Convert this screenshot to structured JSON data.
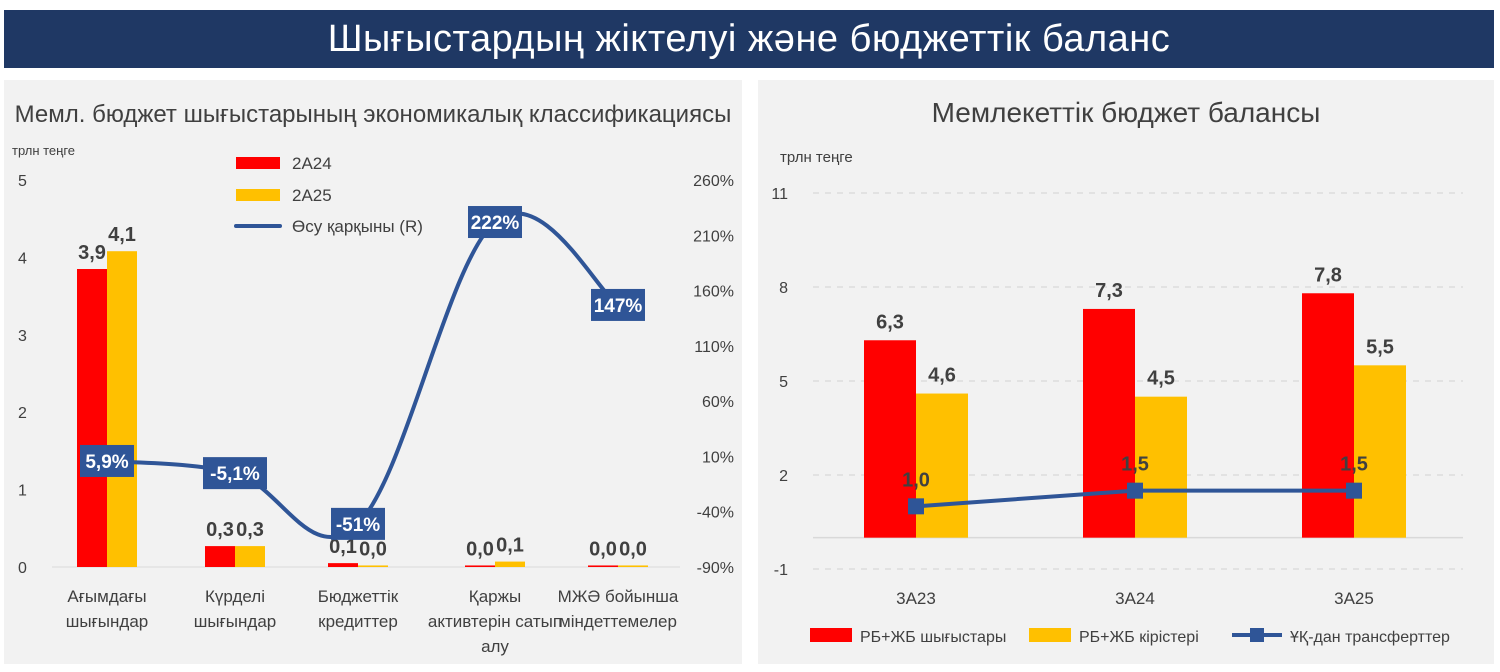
{
  "page": {
    "title": "Шығыстардың жіктелуі және бюджеттік баланс"
  },
  "colors": {
    "banner": "#1f3864",
    "panel": "#f2f2f2",
    "red": "#ff0000",
    "yellow": "#ffc000",
    "navy": "#2f5597",
    "label_box": "#2f5597"
  },
  "chart_data": [
    {
      "type": "bar",
      "title": "Мемл. бюджет шығыстарының экономикалық классификациясы",
      "ylabel": "трлн теңге",
      "ylim": [
        0,
        5
      ],
      "y_ticks": [
        "0",
        "1",
        "2",
        "3",
        "4",
        "5"
      ],
      "y2lim": [
        -90,
        260
      ],
      "y2_ticks": [
        "-90%",
        "-40%",
        "10%",
        "60%",
        "110%",
        "160%",
        "210%",
        "260%"
      ],
      "categories": [
        [
          "Ағымдағы",
          "шығындар"
        ],
        [
          "Күрделі",
          "шығындар"
        ],
        [
          "Бюджеттік",
          "кредиттер"
        ],
        [
          "Қаржы",
          "активтерін сатып",
          "алу"
        ],
        [
          "МЖӘ бойынша",
          "міндеттемелер"
        ]
      ],
      "series": [
        {
          "name": "2А24",
          "values": [
            3.85,
            0.27,
            0.05,
            0.02,
            0.02
          ],
          "labels": [
            "3,9",
            "0,3",
            "0,1",
            "0,0",
            "0,0"
          ]
        },
        {
          "name": "2А25",
          "values": [
            4.08,
            0.27,
            0.02,
            0.07,
            0.02
          ],
          "labels": [
            "4,1",
            "0,3",
            "0,0",
            "0,1",
            "0,0"
          ]
        }
      ],
      "line": {
        "name": "Өсу қарқыны (R)",
        "values": [
          5.9,
          -5.1,
          -51,
          222,
          147
        ],
        "labels": [
          "5,9%",
          "-5,1%",
          "-51%",
          "222%",
          "147%"
        ]
      },
      "legend": "top-center"
    },
    {
      "type": "bar",
      "title": "Мемлекеттік бюджет балансы",
      "ylabel": "трлн теңге",
      "ylim": [
        -1,
        11
      ],
      "y_ticks": [
        "-1",
        "2",
        "5",
        "8",
        "11"
      ],
      "y_tick_values": [
        -1,
        2,
        5,
        8,
        11
      ],
      "categories": [
        "3А23",
        "3А24",
        "3А25"
      ],
      "series": [
        {
          "name": "РБ+ЖБ шығыстары",
          "values": [
            6.3,
            7.3,
            7.8
          ],
          "labels": [
            "6,3",
            "7,3",
            "7,8"
          ]
        },
        {
          "name": "РБ+ЖБ кірістері",
          "values": [
            4.6,
            4.5,
            5.5
          ],
          "labels": [
            "4,6",
            "4,5",
            "5,5"
          ]
        }
      ],
      "line": {
        "name": "ҰҚ-дан трансферттер",
        "values": [
          1.0,
          1.5,
          1.5
        ],
        "labels": [
          "1,0",
          "1,5",
          "1,5"
        ]
      },
      "grid": true,
      "legend": "bottom"
    }
  ]
}
